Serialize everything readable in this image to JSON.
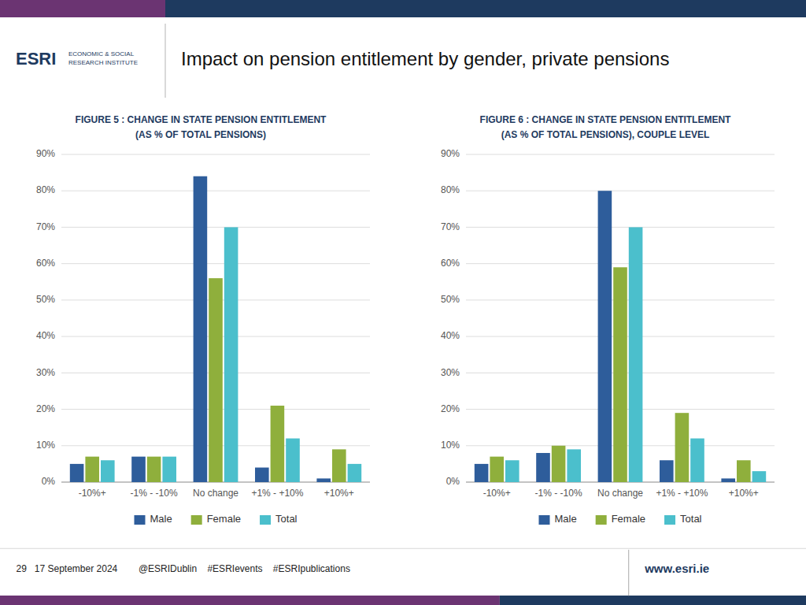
{
  "title": "Impact on pension entitlement by gender, private pensions",
  "annotations": [
    "ESRI",
    "ECONOMIC & SOCIAL\nRESEARCH INSTITUTE",
    "29   17 September 2024        @ESRIDublin    #ESRIevents    #ESRIpublications",
    "www.esri.ie"
  ],
  "chart_data": [
    {
      "type": "bar",
      "title": "FIGURE 5 : CHANGE IN STATE PENSION ENTITLEMENT",
      "subtitle": "(AS % OF TOTAL PENSIONS)",
      "categories": [
        "-10%+",
        "-1% - -10%",
        "No change",
        "+1% - +10%",
        "+10%+"
      ],
      "series": [
        {
          "name": "Male",
          "color": "#2e5d9b",
          "values": [
            0.05,
            0.07,
            0.84,
            0.04,
            0.01
          ]
        },
        {
          "name": "Female",
          "color": "#8faf3c",
          "values": [
            0.07,
            0.07,
            0.56,
            0.21,
            0.09
          ]
        },
        {
          "name": "Total",
          "color": "#4bbfcc",
          "values": [
            0.06,
            0.07,
            0.7,
            0.12,
            0.05
          ]
        }
      ],
      "ylim": [
        0,
        0.9
      ],
      "yticks": [
        {
          "value": 0,
          "label": "0%"
        },
        {
          "value": 0.1,
          "label": "10%"
        },
        {
          "value": 0.2,
          "label": "20%"
        },
        {
          "value": 0.3,
          "label": "30%"
        },
        {
          "value": 0.4,
          "label": "40%"
        },
        {
          "value": 0.5,
          "label": "50%"
        },
        {
          "value": 0.6,
          "label": "60%"
        },
        {
          "value": 0.7,
          "label": "70%"
        },
        {
          "value": 0.8,
          "label": "80%"
        },
        {
          "value": 0.9,
          "label": "90%"
        }
      ],
      "grid": true,
      "legend": "bottom"
    },
    {
      "type": "bar",
      "title": "FIGURE 6 : CHANGE IN STATE PENSION ENTITLEMENT",
      "subtitle": "(AS % OF TOTAL PENSIONS), COUPLE LEVEL",
      "categories": [
        "-10%+",
        "-1% - -10%",
        "No change",
        "+1% - +10%",
        "+10%+"
      ],
      "series": [
        {
          "name": "Male",
          "color": "#2e5d9b",
          "values": [
            0.05,
            0.08,
            0.8,
            0.06,
            0.01
          ]
        },
        {
          "name": "Female",
          "color": "#8faf3c",
          "values": [
            0.07,
            0.1,
            0.59,
            0.19,
            0.06
          ]
        },
        {
          "name": "Total",
          "color": "#4bbfcc",
          "values": [
            0.06,
            0.09,
            0.7,
            0.12,
            0.03
          ]
        }
      ],
      "ylim": [
        0,
        0.9
      ],
      "yticks": [
        {
          "value": 0,
          "label": "0%"
        },
        {
          "value": 0.1,
          "label": "10%"
        },
        {
          "value": 0.2,
          "label": "20%"
        },
        {
          "value": 0.3,
          "label": "30%"
        },
        {
          "value": 0.4,
          "label": "40%"
        },
        {
          "value": 0.5,
          "label": "50%"
        },
        {
          "value": 0.6,
          "label": "60%"
        },
        {
          "value": 0.7,
          "label": "70%"
        },
        {
          "value": 0.8,
          "label": "80%"
        },
        {
          "value": 0.9,
          "label": "90%"
        }
      ],
      "grid": true,
      "legend": "bottom"
    }
  ]
}
